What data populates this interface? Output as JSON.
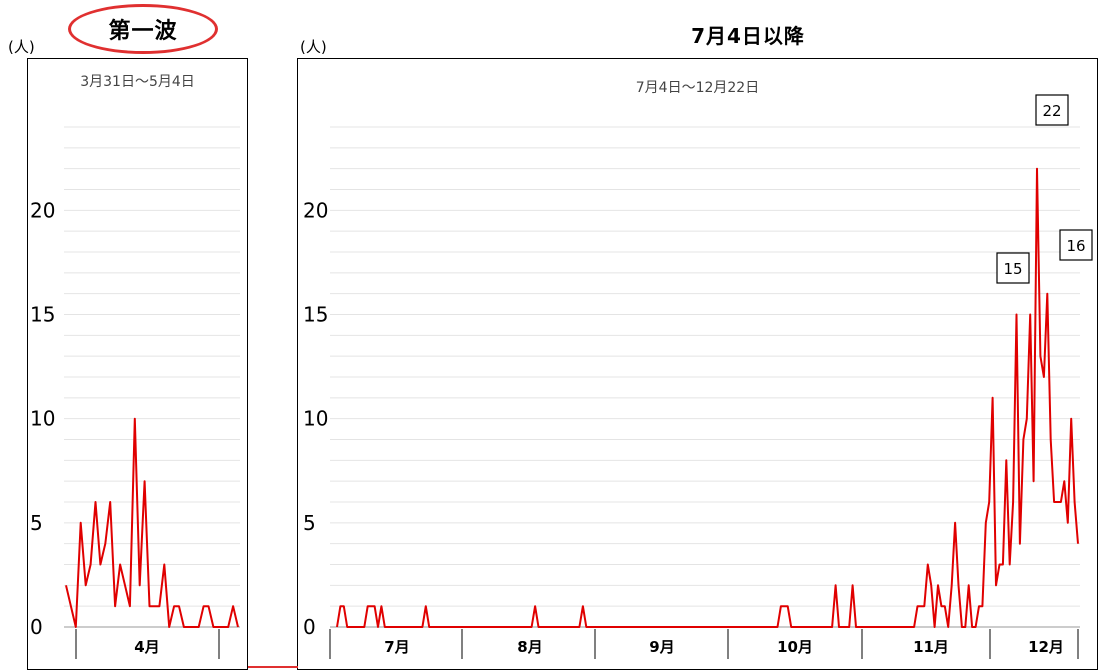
{
  "left": {
    "unit": "(人)",
    "badge_title": "第一波",
    "subtitle": "3月31日～5月4日",
    "chart_data": {
      "type": "line",
      "title": "第一波",
      "subtitle": "3月31日～5月4日",
      "ylabel": "(人)",
      "ylim": [
        0,
        24
      ],
      "yticks": [
        "0",
        "5",
        "10",
        "15",
        "20"
      ],
      "x_groups": [
        "4月"
      ],
      "line_color": "#e00000",
      "values": [
        2,
        1,
        0,
        5,
        2,
        3,
        6,
        3,
        4,
        6,
        1,
        3,
        2,
        1,
        10,
        2,
        7,
        1,
        1,
        1,
        3,
        0,
        1,
        1,
        0,
        0,
        0,
        0,
        1,
        1,
        0,
        0,
        0,
        0,
        1,
        0
      ]
    }
  },
  "right": {
    "unit": "(人)",
    "title": "7月4日以降",
    "subtitle": "7月4日～12月22日",
    "chart_data": {
      "type": "line",
      "title": "7月4日以降",
      "subtitle": "7月4日～12月22日",
      "ylabel": "(人)",
      "ylim": [
        0,
        24
      ],
      "yticks": [
        "0",
        "5",
        "10",
        "15",
        "20"
      ],
      "x_groups": [
        "7月",
        "8月",
        "9月",
        "10月",
        "11月",
        "12月"
      ],
      "line_color": "#e00000",
      "annotations": [
        {
          "label": "15",
          "value": 15
        },
        {
          "label": "22",
          "value": 22
        },
        {
          "label": "16",
          "value": 16
        }
      ],
      "values": [
        0,
        1,
        1,
        0,
        0,
        0,
        0,
        0,
        0,
        1,
        1,
        1,
        0,
        1,
        0,
        0,
        0,
        0,
        0,
        0,
        0,
        0,
        0,
        0,
        0,
        0,
        1,
        0,
        0,
        0,
        0,
        0,
        0,
        0,
        0,
        0,
        0,
        0,
        0,
        0,
        0,
        0,
        0,
        0,
        0,
        0,
        0,
        0,
        0,
        0,
        0,
        0,
        0,
        0,
        0,
        0,
        0,
        0,
        1,
        0,
        0,
        0,
        0,
        0,
        0,
        0,
        0,
        0,
        0,
        0,
        0,
        0,
        1,
        0,
        0,
        0,
        0,
        0,
        0,
        0,
        0,
        0,
        0,
        0,
        0,
        0,
        0,
        0,
        0,
        0,
        0,
        0,
        0,
        0,
        0,
        0,
        0,
        0,
        0,
        0,
        0,
        0,
        0,
        0,
        0,
        0,
        0,
        0,
        0,
        0,
        0,
        0,
        0,
        0,
        0,
        0,
        0,
        0,
        0,
        0,
        0,
        0,
        0,
        0,
        0,
        0,
        0,
        0,
        0,
        0,
        1,
        1,
        1,
        0,
        0,
        0,
        0,
        0,
        0,
        0,
        0,
        0,
        0,
        0,
        0,
        0,
        2,
        0,
        0,
        0,
        0,
        2,
        0,
        0,
        0,
        0,
        0,
        0,
        0,
        0,
        0,
        0,
        0,
        0,
        0,
        0,
        0,
        0,
        0,
        0,
        1,
        1,
        1,
        3,
        2,
        0,
        2,
        1,
        1,
        0,
        2,
        5,
        2,
        0,
        0,
        2,
        0,
        0,
        1,
        1,
        5,
        6,
        11,
        2,
        3,
        3,
        8,
        3,
        6,
        15,
        4,
        9,
        10,
        15,
        7,
        22,
        13,
        12,
        16,
        9,
        6,
        6,
        6,
        7,
        5,
        10,
        6,
        4
      ]
    }
  }
}
